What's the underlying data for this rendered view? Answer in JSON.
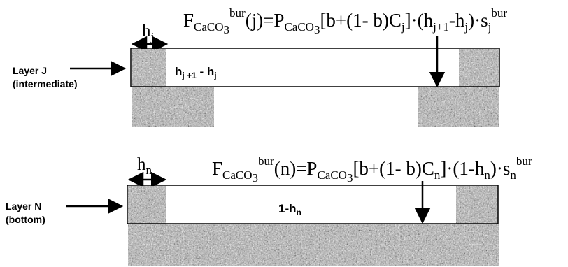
{
  "layer_j": {
    "label_line1": "Layer J",
    "label_line2": "(intermediate)",
    "width_symbol": "h",
    "width_sub": "j",
    "inner_h1": "h",
    "inner_sub1": "j +1",
    "inner_minus": "- h",
    "inner_sub2": "j",
    "formula": {
      "f": "F",
      "caco3": "CaCO",
      "three": "3",
      "bur": "bur",
      "arg": "(j)=P",
      "caco3_2": "CaCO",
      "three_2": "3",
      "mid": "[b+(1- b)C",
      "c_sub": "j",
      "dot": "]·(h",
      "h_sub1": "j+1",
      "minus": "-h",
      "h_sub2": "j",
      "end": ")·s",
      "s_sub": "j",
      "s_sup": "bur"
    }
  },
  "layer_n": {
    "label_line1": "Layer N",
    "label_line2": "(bottom)",
    "width_symbol": "h",
    "width_sub": "n",
    "inner_main": "1-h",
    "inner_sub": "n",
    "formula": {
      "f": "F",
      "caco3": "CaCO",
      "three": "3",
      "bur": "bur",
      "arg": "(n)=P",
      "caco3_2": "CaCO",
      "three_2": "3",
      "mid": "[b+(1- b)C",
      "c_sub": "n",
      "dot": "]·(1-h",
      "h_sub": "n",
      "end": ")·s",
      "s_sub": "n",
      "s_sup": "bur"
    }
  },
  "colors": {
    "sediment_base": "#a8a8a8",
    "outline": "#000000"
  }
}
